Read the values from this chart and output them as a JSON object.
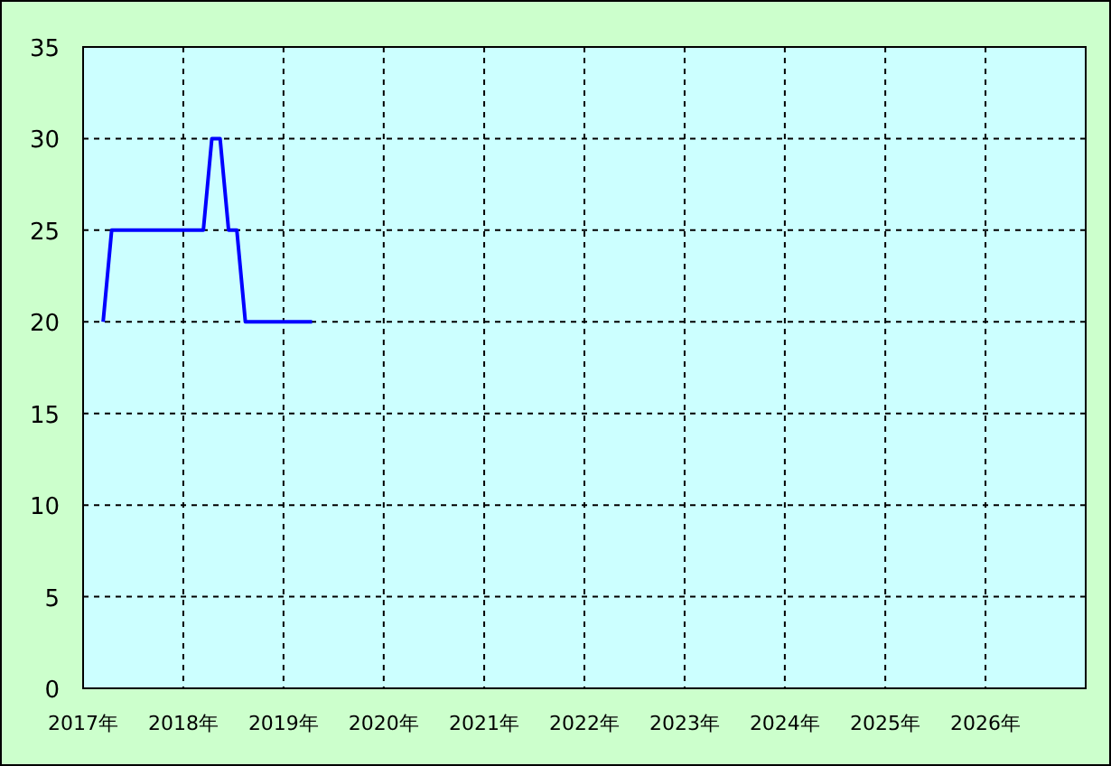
{
  "chart_data": {
    "type": "line",
    "x": [
      "2017-03-15",
      "2017-04-15",
      "2018-03-15",
      "2018-04-15",
      "2018-05-15",
      "2018-06-15",
      "2018-07-15",
      "2018-08-15",
      "2019-04-15"
    ],
    "series": [
      {
        "color": "#0000ff",
        "values": [
          20,
          25,
          25,
          30,
          30,
          25,
          25,
          20,
          20
        ]
      }
    ],
    "xlim": [
      "2017-01-01",
      "2027-01-01"
    ],
    "xticks": [
      {
        "value": "2017-01-01",
        "label": "2017年"
      },
      {
        "value": "2018-01-01",
        "label": "2018年"
      },
      {
        "value": "2019-01-01",
        "label": "2019年"
      },
      {
        "value": "2020-01-01",
        "label": "2020年"
      },
      {
        "value": "2021-01-01",
        "label": "2021年"
      },
      {
        "value": "2022-01-01",
        "label": "2022年"
      },
      {
        "value": "2023-01-01",
        "label": "2023年"
      },
      {
        "value": "2024-01-01",
        "label": "2024年"
      },
      {
        "value": "2025-01-01",
        "label": "2025年"
      },
      {
        "value": "2026-01-01",
        "label": "2026年"
      }
    ],
    "ylim": [
      0,
      35
    ],
    "yticks": [
      0,
      5,
      10,
      15,
      20,
      25,
      30,
      35
    ],
    "grid": true,
    "marker": "none",
    "line_style": "solid"
  }
}
